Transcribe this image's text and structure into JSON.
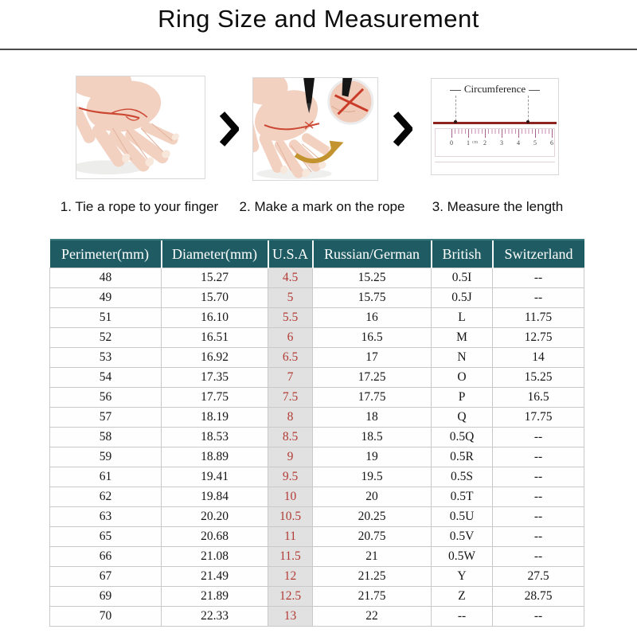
{
  "title": "Ring Size and Measurement",
  "steps": {
    "captions": [
      "1. Tie a rope to your finger",
      "2. Make a mark on the rope",
      "3. Measure the length"
    ],
    "ruler": {
      "label": "Circumference",
      "ticks": [
        "0",
        "1",
        "2",
        "3",
        "4",
        "5",
        "6"
      ],
      "unit": "cm"
    }
  },
  "icons": {
    "step_separator": "chevron-right"
  },
  "table": {
    "headers": [
      "Perimeter(mm)",
      "Diameter(mm)",
      "U.S.A",
      "Russian/German",
      "British",
      "Switzerland"
    ],
    "usa_column_index": 2,
    "rows": [
      [
        "48",
        "15.27",
        "4.5",
        "15.25",
        "0.5I",
        "--"
      ],
      [
        "49",
        "15.70",
        "5",
        "15.75",
        "0.5J",
        "--"
      ],
      [
        "51",
        "16.10",
        "5.5",
        "16",
        "L",
        "11.75"
      ],
      [
        "52",
        "16.51",
        "6",
        "16.5",
        "M",
        "12.75"
      ],
      [
        "53",
        "16.92",
        "6.5",
        "17",
        "N",
        "14"
      ],
      [
        "54",
        "17.35",
        "7",
        "17.25",
        "O",
        "15.25"
      ],
      [
        "56",
        "17.75",
        "7.5",
        "17.75",
        "P",
        "16.5"
      ],
      [
        "57",
        "18.19",
        "8",
        "18",
        "Q",
        "17.75"
      ],
      [
        "58",
        "18.53",
        "8.5",
        "18.5",
        "0.5Q",
        "--"
      ],
      [
        "59",
        "18.89",
        "9",
        "19",
        "0.5R",
        "--"
      ],
      [
        "61",
        "19.41",
        "9.5",
        "19.5",
        "0.5S",
        "--"
      ],
      [
        "62",
        "19.84",
        "10",
        "20",
        "0.5T",
        "--"
      ],
      [
        "63",
        "20.20",
        "10.5",
        "20.25",
        "0.5U",
        "--"
      ],
      [
        "65",
        "20.68",
        "11",
        "20.75",
        "0.5V",
        "--"
      ],
      [
        "66",
        "21.08",
        "11.5",
        "21",
        "0.5W",
        "--"
      ],
      [
        "67",
        "21.49",
        "12",
        "21.25",
        "Y",
        "27.5"
      ],
      [
        "69",
        "21.89",
        "12.5",
        "21.75",
        "Z",
        "28.75"
      ],
      [
        "70",
        "22.33",
        "13",
        "22",
        "--",
        "--"
      ]
    ]
  },
  "colors": {
    "header_bg": "#1e5b62",
    "header_text": "#ffffff",
    "usa_col_bg": "#e1e1e1",
    "usa_col_text": "#b23b35",
    "rope_red": "#cc4732",
    "rope_dark": "#8e2422",
    "arrow_gold": "#c2932e"
  }
}
